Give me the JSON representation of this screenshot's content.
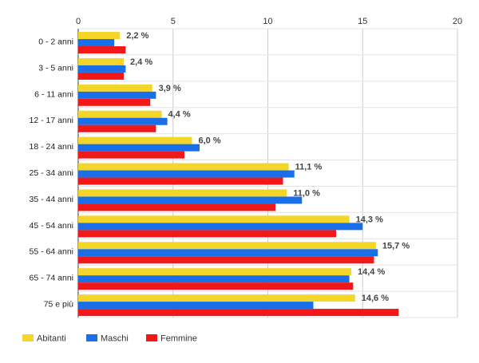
{
  "chart_data": {
    "type": "bar",
    "orientation": "horizontal",
    "categories": [
      "0 - 2 anni",
      "3 - 5 anni",
      "6 - 11 anni",
      "12 - 17 anni",
      "18 - 24 anni",
      "25 - 34 anni",
      "35 - 44 anni",
      "45 - 54 anni",
      "55 - 64 anni",
      "65 - 74 anni",
      "75 e più"
    ],
    "series": [
      {
        "name": "Abitanti",
        "color": "#f4d52a",
        "values": [
          2.2,
          2.4,
          3.9,
          4.4,
          6.0,
          11.1,
          11.0,
          14.3,
          15.7,
          14.4,
          14.6
        ]
      },
      {
        "name": "Maschi",
        "color": "#1a6fe8",
        "values": [
          1.9,
          2.5,
          4.1,
          4.7,
          6.4,
          11.4,
          11.8,
          15.0,
          15.8,
          14.3,
          12.4
        ]
      },
      {
        "name": "Femmine",
        "color": "#f01818",
        "values": [
          2.5,
          2.4,
          3.8,
          4.1,
          5.6,
          10.8,
          10.4,
          13.6,
          15.6,
          14.5,
          16.9
        ]
      }
    ],
    "data_labels": [
      "2,2 %",
      "2,4 %",
      "3,9 %",
      "4,4 %",
      "6,0 %",
      "11,1 %",
      "11,0 %",
      "14,3 %",
      "15,7 %",
      "14,4 %",
      "14,6 %"
    ],
    "data_label_series": "Abitanti",
    "x_ticks": [
      "0",
      "5",
      "10",
      "15",
      "20"
    ],
    "xlim": [
      0,
      20
    ],
    "x_axis_position": "top",
    "grid": true,
    "legend_position": "bottom-left"
  }
}
